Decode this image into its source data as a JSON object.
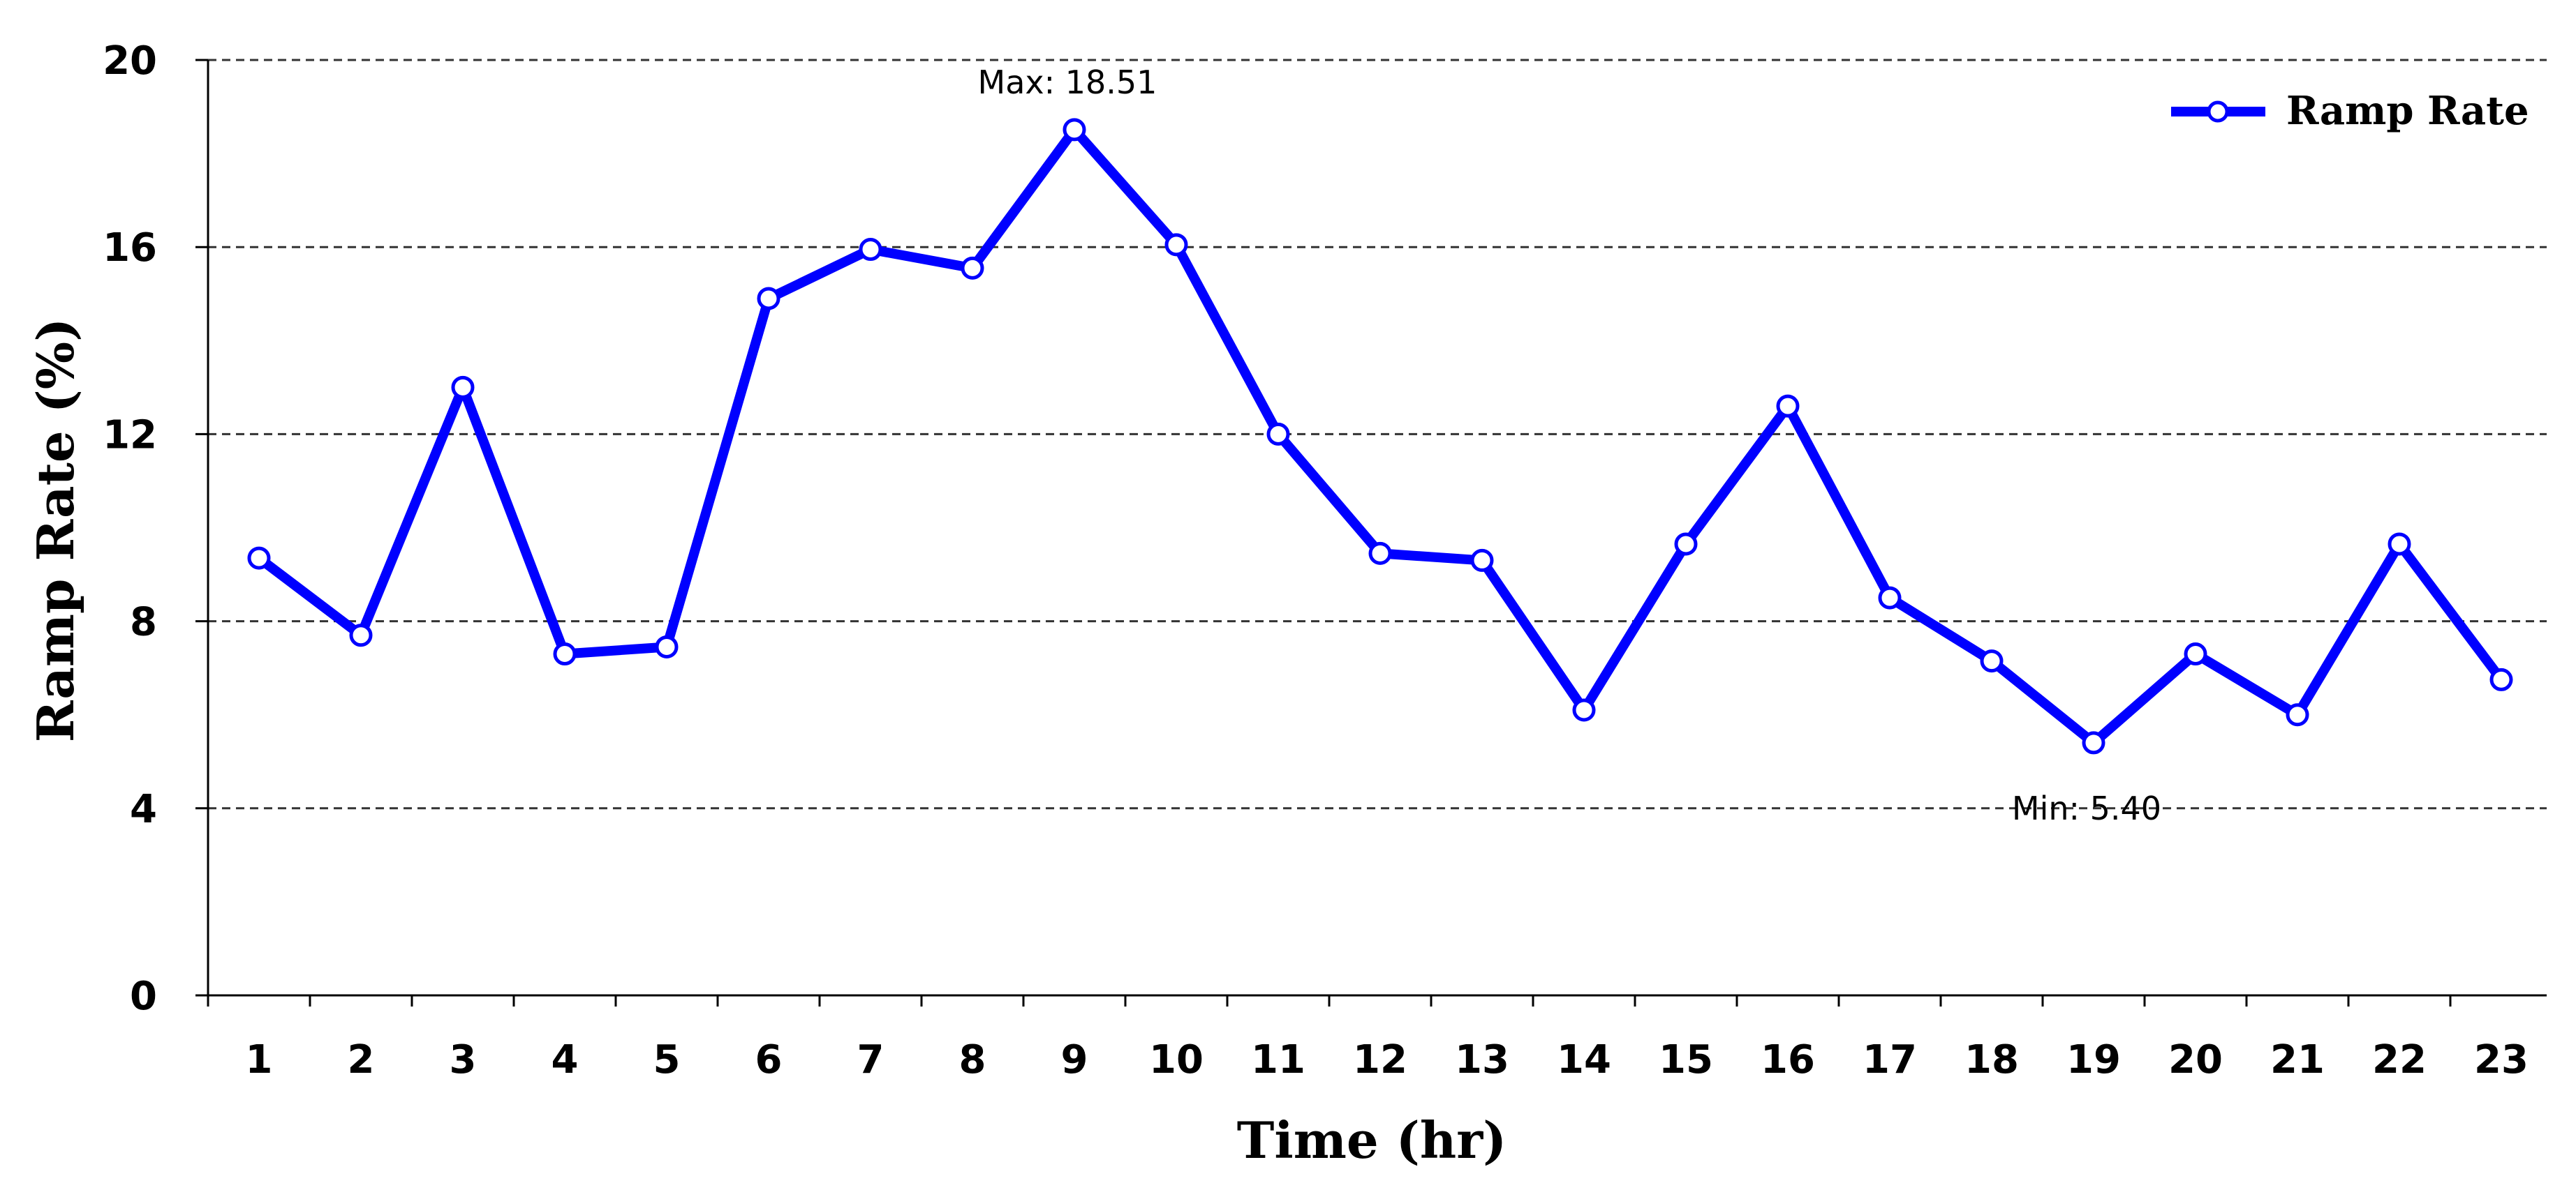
{
  "chart_data": {
    "type": "line",
    "xlabel": "Time (hr)",
    "ylabel": "Ramp Rate (%)",
    "ylim": [
      0,
      20
    ],
    "yticks": [
      0,
      4,
      8,
      12,
      16,
      20
    ],
    "grid": "horizontal-dashed",
    "legend_position": "top-right",
    "categories": [
      "1",
      "2",
      "3",
      "4",
      "5",
      "6",
      "7",
      "8",
      "9",
      "10",
      "11",
      "12",
      "13",
      "14",
      "15",
      "16",
      "17",
      "18",
      "19",
      "20",
      "21",
      "22",
      "23"
    ],
    "series": [
      {
        "name": "Ramp Rate",
        "color": "#0000ff",
        "marker": "hollow-circle",
        "values": [
          9.35,
          7.7,
          13.0,
          7.3,
          7.45,
          14.9,
          15.95,
          15.55,
          18.51,
          16.05,
          12.0,
          9.45,
          9.3,
          6.1,
          9.65,
          12.6,
          8.5,
          7.15,
          5.4,
          7.3,
          6.0,
          9.65,
          6.75
        ]
      }
    ],
    "annotations": [
      {
        "text": "Max: 18.51",
        "index": 8
      },
      {
        "text": "Min: 5.40",
        "index": 18
      }
    ]
  }
}
